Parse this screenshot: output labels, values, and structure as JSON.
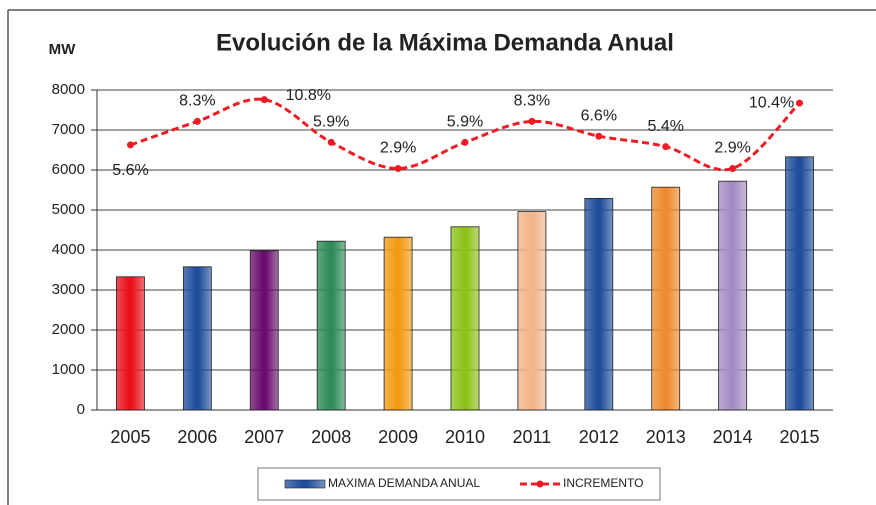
{
  "chart_data": {
    "type": "bar_line",
    "title": "Evolución de la Máxima Demanda Anual",
    "y_label": "MW",
    "categories": [
      "2005",
      "2006",
      "2007",
      "2008",
      "2009",
      "2010",
      "2011",
      "2012",
      "2013",
      "2014",
      "2015"
    ],
    "series": [
      {
        "name": "MAXIMA DEMANDA ANUAL",
        "type": "bar",
        "color": "#1f4e9c",
        "colors": [
          "#e8101a",
          "#1f4e9c",
          "#6a0d6e",
          "#2e8b57",
          "#f39a12",
          "#8cc21a",
          "#f2b48a",
          "#1f4e9c",
          "#ef8a2e",
          "#a38cc4",
          "#1f4e9c"
        ],
        "values": [
          3330,
          3580,
          3980,
          4220,
          4320,
          4580,
          4960,
          5290,
          5570,
          5720,
          6330
        ]
      },
      {
        "name": "INCREMENTO",
        "type": "line",
        "axis": "y2",
        "color": "#ee1c24",
        "values": [
          5.6,
          8.3,
          10.8,
          5.9,
          2.9,
          5.9,
          8.3,
          6.6,
          5.4,
          2.9,
          10.4
        ],
        "value_labels": [
          "5.6%",
          "8.3%",
          "10.8%",
          "5.9%",
          "2.9%",
          "5.9%",
          "8.3%",
          "6.6%",
          "5.4%",
          "2.9%",
          "10.4%"
        ]
      }
    ],
    "ylim": [
      0,
      8000
    ],
    "yticks": [
      0,
      1000,
      2000,
      3000,
      4000,
      5000,
      6000,
      7000,
      8000
    ],
    "y2lim": [
      -24.8,
      11.9
    ],
    "grid": true,
    "legend": "bottom"
  }
}
